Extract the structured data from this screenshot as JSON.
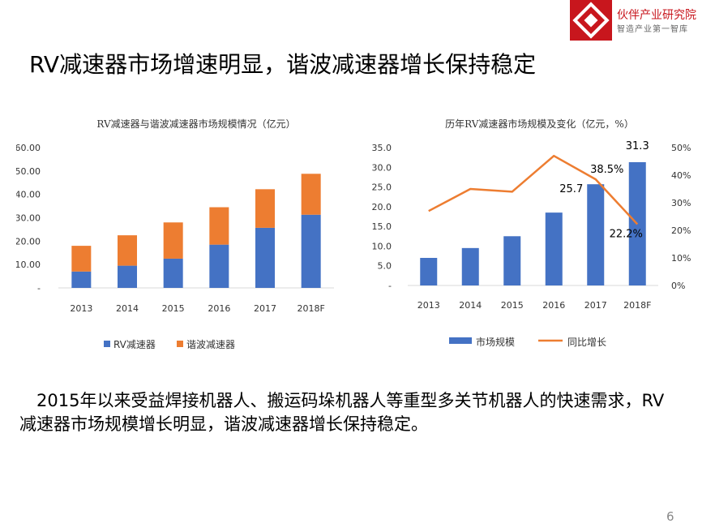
{
  "brand": {
    "name": "伙伴产业研究院",
    "tagline": "智造产业第一智库",
    "colors": {
      "red": "#c8161d"
    }
  },
  "title": "RV减速器市场增速明显，谐波减速器增长保持稳定",
  "body_text": "　2015年以来受益焊接机器人、搬运码垛机器人等重型多关节机器人的快速需求，RV减速器市场规模增长明显，谐波减速器增长保持稳定。",
  "page_number": "6",
  "chart_data": [
    {
      "type": "bar",
      "stacked": true,
      "title": "RV减速器与谐波减速器市场规模情况（亿元）",
      "categories": [
        "2013",
        "2014",
        "2015",
        "2016",
        "2017",
        "2018F"
      ],
      "series": [
        {
          "name": "RV减速器",
          "values": [
            7,
            9.5,
            12.5,
            18.5,
            25.7,
            31.3
          ],
          "color": "#4472c4"
        },
        {
          "name": "谐波减速器",
          "values": [
            11,
            13,
            15.5,
            16,
            16.5,
            17.5
          ],
          "color": "#ed7d31"
        }
      ],
      "ylim": [
        0,
        60
      ],
      "yticks": [
        "-",
        "10.00",
        "20.00",
        "30.00",
        "40.00",
        "50.00",
        "60.00"
      ],
      "grid": false,
      "legend": "bottom"
    },
    {
      "type": "bar+line",
      "title": "历年RV减速器市场规模及变化（亿元，%）",
      "categories": [
        "2013",
        "2014",
        "2015",
        "2016",
        "2017",
        "2018F"
      ],
      "series": [
        {
          "name": "市场规模",
          "type": "bar",
          "axis": "left",
          "values": [
            7,
            9.5,
            12.5,
            18.5,
            25.7,
            31.3
          ],
          "color": "#4472c4"
        },
        {
          "name": "同比增长",
          "type": "line",
          "axis": "right",
          "values": [
            27,
            35,
            34,
            47,
            38.5,
            22.2
          ],
          "color": "#ed7d31"
        }
      ],
      "ylim_left": [
        0,
        35
      ],
      "yticks_left": [
        "-",
        "5.0",
        "10.0",
        "15.0",
        "20.0",
        "25.0",
        "30.0",
        "35.0"
      ],
      "ylim_right": [
        0,
        50
      ],
      "yticks_right": [
        "0%",
        "10%",
        "20%",
        "30%",
        "40%",
        "50%"
      ],
      "annotations": [
        {
          "series": "市场规模",
          "index": 4,
          "text": "25.7"
        },
        {
          "series": "市场规模",
          "index": 5,
          "text": "31.3"
        },
        {
          "series": "同比增长",
          "index": 4,
          "text": "38.5%"
        },
        {
          "series": "同比增长",
          "index": 5,
          "text": "22.2%"
        }
      ],
      "grid": false,
      "legend": "bottom"
    }
  ]
}
